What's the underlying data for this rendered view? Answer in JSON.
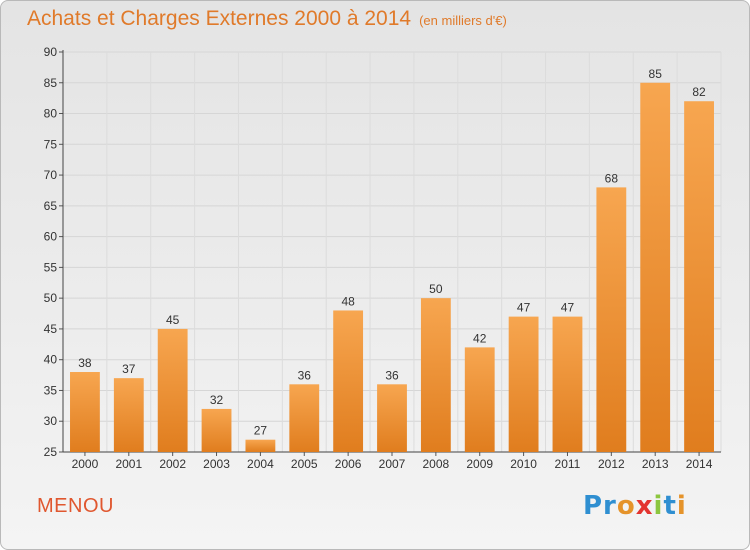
{
  "chart_data": {
    "type": "bar",
    "title": "Achats et Charges Externes 2000 à 2014",
    "subtitle": "(en milliers d'€)",
    "categories": [
      "2000",
      "2001",
      "2002",
      "2003",
      "2004",
      "2005",
      "2006",
      "2007",
      "2008",
      "2009",
      "2010",
      "2011",
      "2012",
      "2013",
      "2014"
    ],
    "values": [
      38,
      37,
      45,
      32,
      27,
      36,
      48,
      36,
      50,
      42,
      47,
      47,
      68,
      85,
      82
    ],
    "xlabel": "",
    "ylabel": "",
    "ylim": [
      25,
      90
    ],
    "yticks": [
      25,
      30,
      35,
      40,
      45,
      50,
      55,
      60,
      65,
      70,
      75,
      80,
      85,
      90
    ],
    "grid": true,
    "bar_color_light": "#f7a650",
    "bar_color_dark": "#e07d1e"
  },
  "footer": {
    "city": "MENOU",
    "logo": "Proxiti"
  }
}
